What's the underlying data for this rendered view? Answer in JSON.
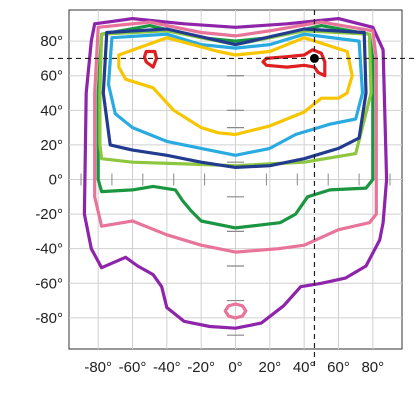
{
  "chart_data": {
    "type": "line",
    "title": "",
    "xlabel": "",
    "ylabel": "",
    "xlim": [
      -97,
      97
    ],
    "ylim": [
      -98,
      98
    ],
    "grid": true,
    "x_ticks": [
      -80,
      -60,
      -40,
      -20,
      0,
      20,
      40,
      60,
      80
    ],
    "y_ticks": [
      80,
      60,
      40,
      20,
      0,
      -20,
      -40,
      -60,
      -80
    ],
    "x_tick_labels": [
      "-80°",
      "-60°",
      "-40°",
      "-20°",
      "0°",
      "20°",
      "40°",
      "60°",
      "80°"
    ],
    "y_tick_labels": [
      "80°",
      "60°",
      "40°",
      "20°",
      "0°",
      "-20°",
      "-40°",
      "-60°",
      "-80°"
    ],
    "reference_point": {
      "x": 46,
      "y": 70,
      "color": "#000000"
    },
    "reference_lines": {
      "x": 46,
      "y": 70,
      "style": "dashed"
    },
    "center_ticks_y": [
      60,
      40,
      30,
      10,
      -10,
      -30,
      -50,
      -70,
      -90
    ],
    "tick_row_y": 0,
    "tick_row_x": [
      -90,
      -72,
      -54,
      -36,
      -18,
      18,
      36,
      54,
      72,
      90
    ],
    "series": [
      {
        "color": "#8e24aa",
        "x": [
          -82,
          -60,
          -30,
          0,
          30,
          60,
          80,
          86,
          88,
          86,
          84,
          76,
          64,
          50,
          38,
          28,
          15,
          0,
          -15,
          -30,
          -40,
          -43,
          -48,
          -57,
          -64,
          -78,
          -84,
          -88,
          -87,
          -84,
          -82
        ],
        "y": [
          90,
          93,
          90,
          88,
          90,
          93,
          88,
          75,
          0,
          -25,
          -35,
          -50,
          -57,
          -60,
          -62,
          -73,
          -83,
          -86,
          -85,
          -82,
          -74,
          -62,
          -55,
          -50,
          -45,
          -51,
          -40,
          -20,
          50,
          80,
          90
        ]
      },
      {
        "color": "#e8749a",
        "x": [
          -80,
          -50,
          -20,
          0,
          20,
          50,
          80,
          82,
          82,
          78,
          60,
          40,
          25,
          0,
          -20,
          -40,
          -60,
          -78,
          -82,
          -82,
          -80
        ],
        "y": [
          88,
          91,
          85,
          83,
          86,
          91,
          86,
          70,
          -20,
          -25,
          -29,
          -38,
          -40,
          -42,
          -38,
          -32,
          -24,
          -27,
          -10,
          50,
          88
        ]
      },
      {
        "color": "#1a9641",
        "x": [
          -78,
          -50,
          -20,
          0,
          20,
          50,
          78,
          80,
          80,
          76,
          55,
          42,
          35,
          26,
          0,
          -20,
          -26,
          -31,
          -35,
          -48,
          -60,
          -78,
          -80,
          -80,
          -78
        ],
        "y": [
          84,
          89,
          82,
          80,
          82,
          89,
          84,
          70,
          0,
          -5,
          -6,
          -10,
          -20,
          -25,
          -28,
          -24,
          -18,
          -12,
          -6,
          -4,
          -6,
          -7,
          0,
          50,
          84
        ]
      },
      {
        "color": "#8dc63f",
        "x": [
          -78,
          -40,
          0,
          40,
          78,
          79,
          70,
          40,
          20,
          0,
          -30,
          -60,
          -78,
          -79,
          -79,
          -78
        ],
        "y": [
          84,
          86,
          78,
          86,
          84,
          50,
          15,
          10,
          9,
          8,
          9,
          10,
          12,
          20,
          50,
          84
        ]
      },
      {
        "color": "#223b8f",
        "x": [
          -75,
          -40,
          0,
          40,
          75,
          76,
          72,
          60,
          40,
          20,
          0,
          -20,
          -40,
          -60,
          -73,
          -77,
          -75
        ],
        "y": [
          85,
          87,
          78,
          87,
          85,
          50,
          24,
          18,
          12,
          8,
          7,
          10,
          14,
          17,
          20,
          50,
          85
        ]
      },
      {
        "color": "#29aae1",
        "x": [
          -72,
          -40,
          -20,
          0,
          20,
          40,
          72,
          74,
          70,
          55,
          35,
          20,
          0,
          -20,
          -40,
          -60,
          -70,
          -74,
          -72
        ],
        "y": [
          82,
          84,
          78,
          76,
          78,
          84,
          80,
          50,
          35,
          32,
          26,
          18,
          14,
          18,
          22,
          30,
          38,
          55,
          82
        ]
      },
      {
        "color": "#f7c600",
        "x": [
          -68,
          -40,
          -10,
          0,
          20,
          40,
          65,
          68,
          65,
          60,
          50,
          40,
          20,
          0,
          -10,
          -20,
          -36,
          -48,
          -64,
          -68,
          -68
        ],
        "y": [
          72,
          82,
          74,
          72,
          74,
          82,
          74,
          60,
          50,
          47,
          47,
          39,
          31,
          26,
          27,
          30,
          40,
          53,
          58,
          65,
          72
        ]
      },
      {
        "color": "#e02020",
        "closed": true,
        "x": [
          -52,
          -47,
          -46,
          -48,
          -52,
          -53,
          -52
        ],
        "y": [
          74,
          74,
          70,
          65,
          68,
          71,
          74
        ]
      },
      {
        "color": "#e02020",
        "closed": true,
        "x": [
          18,
          30,
          40,
          45,
          50,
          52,
          52,
          48,
          46,
          40,
          30,
          18,
          16,
          18
        ],
        "y": [
          70,
          71,
          72,
          75,
          73,
          68,
          60,
          62,
          65,
          66,
          65,
          66,
          68,
          70
        ]
      },
      {
        "color": "#e8749a",
        "closed": true,
        "x": [
          -6,
          -4,
          0,
          4,
          6,
          4,
          0,
          -4,
          -6
        ],
        "y": [
          -76,
          -73,
          -72,
          -73,
          -76,
          -79,
          -80,
          -79,
          -76
        ]
      }
    ]
  }
}
